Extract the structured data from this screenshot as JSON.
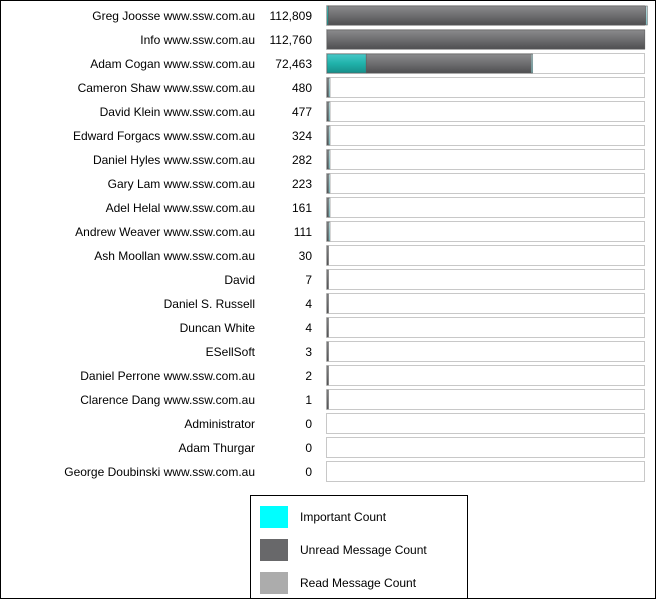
{
  "chart_data": {
    "type": "bar",
    "orientation": "horizontal",
    "stacked": true,
    "title": "",
    "xlabel": "",
    "ylabel": "",
    "xlim": [
      0,
      112809
    ],
    "grid": false,
    "legend_position": "bottom",
    "categories": [
      "Greg Joosse www.ssw.com.au",
      "Info www.ssw.com.au",
      "Adam Cogan www.ssw.com.au",
      "Cameron Shaw www.ssw.com.au",
      "David Klein www.ssw.com.au",
      "Edward Forgacs www.ssw.com.au",
      "Daniel Hyles www.ssw.com.au",
      "Gary Lam www.ssw.com.au",
      "Adel Helal www.ssw.com.au",
      "Andrew Weaver www.ssw.com.au",
      "Ash Moollan www.ssw.com.au",
      "David",
      "Daniel S. Russell",
      "Duncan White",
      "ESellSoft",
      "Daniel Perrone www.ssw.com.au",
      "Clarence Dang www.ssw.com.au",
      "Administrator",
      "Adam Thurgar",
      "George Doubinski www.ssw.com.au"
    ],
    "totals": [
      "112,809",
      "112,760",
      "72,463",
      "480",
      "477",
      "324",
      "282",
      "223",
      "161",
      "111",
      "30",
      "7",
      "4",
      "4",
      "3",
      "2",
      "1",
      "0",
      "0",
      "0"
    ],
    "total_values": [
      112809,
      112760,
      72463,
      480,
      477,
      324,
      282,
      223,
      161,
      111,
      30,
      7,
      4,
      4,
      3,
      2,
      1,
      0,
      0,
      0
    ],
    "series": [
      {
        "name": "Important Count",
        "color": "#20b2aa",
        "values": [
          200,
          0,
          13900,
          0,
          0,
          0,
          0,
          0,
          0,
          0,
          0,
          0,
          0,
          0,
          0,
          0,
          0,
          0,
          0,
          0
        ]
      },
      {
        "name": "Unread Message Count",
        "color": "#6e6e70",
        "values": [
          112600,
          112760,
          58560,
          375,
          40,
          40,
          110,
          20,
          10,
          50,
          30,
          7,
          4,
          4,
          3,
          2,
          1,
          0,
          0,
          0
        ]
      },
      {
        "name": "Read Message Count",
        "color": "#a8e4e8",
        "values": [
          9,
          0,
          3,
          105,
          437,
          284,
          172,
          203,
          151,
          61,
          0,
          0,
          0,
          0,
          0,
          0,
          0,
          0,
          0,
          0
        ]
      }
    ]
  },
  "legend": {
    "items": [
      {
        "label": "Important Count",
        "color": "#00ffff"
      },
      {
        "label": "Unread Message Count",
        "color": "#68686a"
      },
      {
        "label": "Read Message Count",
        "color": "#acacac"
      }
    ]
  }
}
